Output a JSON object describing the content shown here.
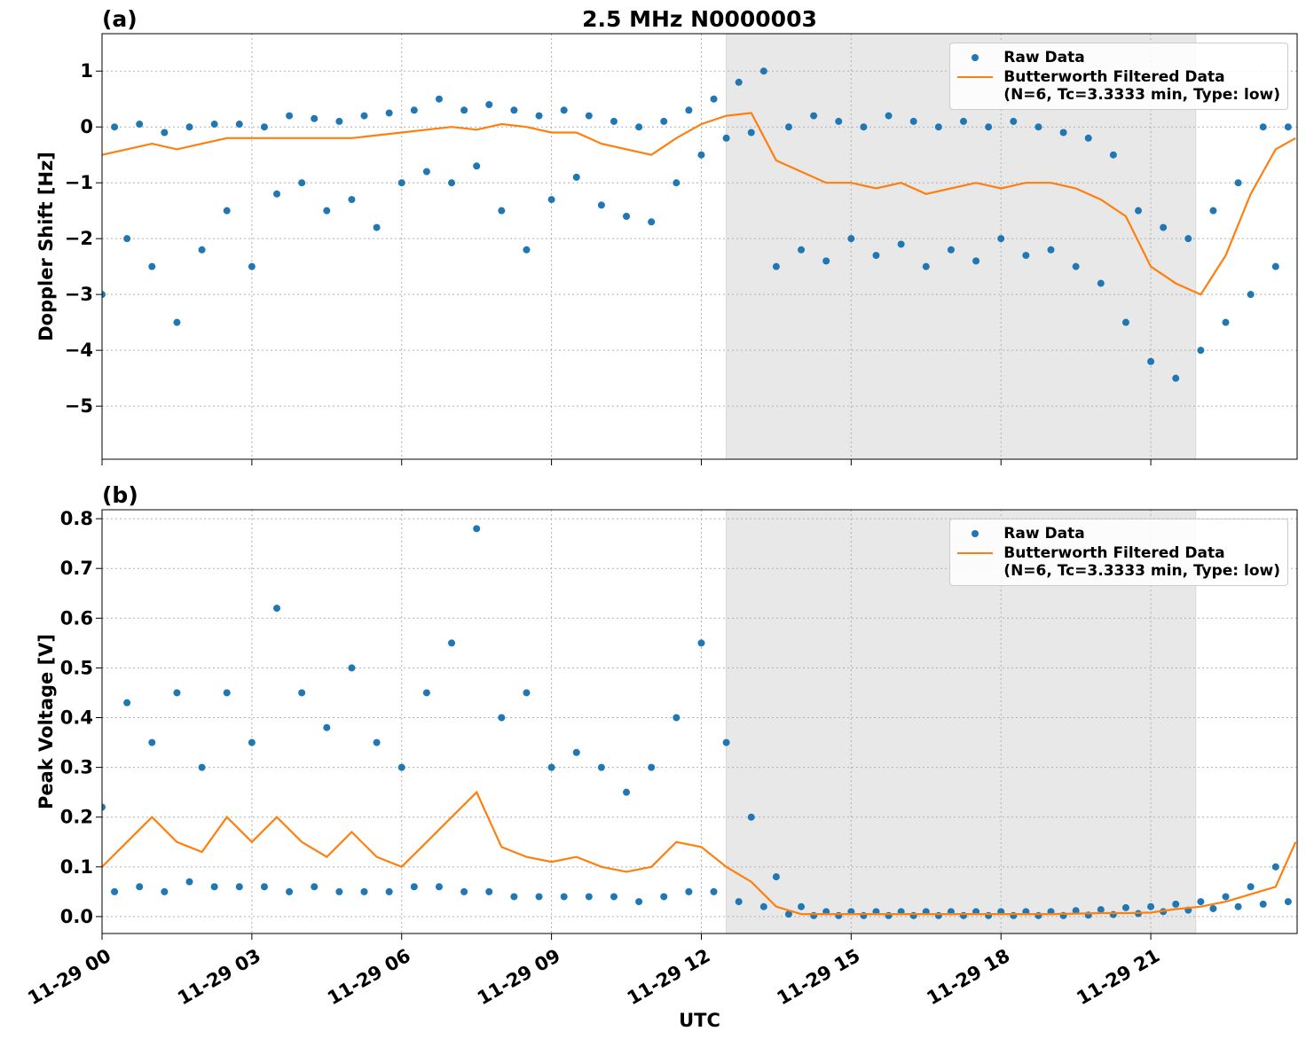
{
  "chart_data": [
    {
      "type": "scatter",
      "title": "2.5 MHz N0000003",
      "panel_label": "(a)",
      "y_label": "Doppler Shift [Hz]",
      "xlim": [
        0,
        23.93
      ],
      "xticks": [
        0,
        3,
        6,
        9,
        12,
        15,
        18,
        21
      ],
      "ylim": [
        -5.95,
        1.67
      ],
      "yticks": [
        {
          "value": -5,
          "label": "−5"
        },
        {
          "value": -4,
          "label": "−4"
        },
        {
          "value": -3,
          "label": "−3"
        },
        {
          "value": -2,
          "label": "−2"
        },
        {
          "value": -1,
          "label": "−1"
        },
        0,
        1
      ],
      "grid": true,
      "shaded_span": [
        12.5,
        21.9
      ],
      "legend": "upper right",
      "series": [
        {
          "name": "Raw Data",
          "style": "points",
          "color": "#1f77b4",
          "x": [
            0,
            0.25,
            0.5,
            0.75,
            1,
            1.25,
            1.5,
            1.75,
            2,
            2.25,
            2.5,
            2.75,
            3,
            3.25,
            3.5,
            3.75,
            4,
            4.25,
            4.5,
            4.75,
            5,
            5.25,
            5.5,
            5.75,
            6,
            6.25,
            6.5,
            6.75,
            7,
            7.25,
            7.5,
            7.75,
            8,
            8.25,
            8.5,
            8.75,
            9,
            9.25,
            9.5,
            9.75,
            10,
            10.25,
            10.5,
            10.75,
            11,
            11.25,
            11.5,
            11.75,
            12,
            12.25,
            12.5,
            12.75,
            13,
            13.25,
            13.5,
            13.75,
            14,
            14.25,
            14.5,
            14.75,
            15,
            15.25,
            15.5,
            15.75,
            16,
            16.25,
            16.5,
            16.75,
            17,
            17.25,
            17.5,
            17.75,
            18,
            18.25,
            18.5,
            18.75,
            19,
            19.25,
            19.5,
            19.75,
            20,
            20.25,
            20.5,
            20.75,
            21,
            21.25,
            21.5,
            21.75,
            22,
            22.25,
            22.5,
            22.75,
            23,
            23.25,
            23.5,
            23.75
          ],
          "values": [
            -3.0,
            0.0,
            -2.0,
            0.05,
            -2.5,
            -0.1,
            -3.5,
            0.0,
            -2.2,
            0.05,
            -1.5,
            0.05,
            -2.5,
            0.0,
            -1.2,
            0.2,
            -1.0,
            0.15,
            -1.5,
            0.1,
            -1.3,
            0.2,
            -1.8,
            0.25,
            -1.0,
            0.3,
            -0.8,
            0.5,
            -1.0,
            0.3,
            -0.7,
            0.4,
            -1.5,
            0.3,
            -2.2,
            0.2,
            -1.3,
            0.3,
            -0.9,
            0.2,
            -1.4,
            0.1,
            -1.6,
            0.0,
            -1.7,
            0.1,
            -1.0,
            0.3,
            -0.5,
            0.5,
            -0.2,
            0.8,
            -0.1,
            1.0,
            -2.5,
            0.0,
            -2.2,
            0.2,
            -2.4,
            0.1,
            -2.0,
            0.0,
            -2.3,
            0.2,
            -2.1,
            0.1,
            -2.5,
            0.0,
            -2.2,
            0.1,
            -2.4,
            0.0,
            -2.0,
            0.1,
            -2.3,
            0.0,
            -2.2,
            -0.1,
            -2.5,
            -0.2,
            -2.8,
            -0.5,
            -3.5,
            -1.5,
            -4.2,
            -1.8,
            -4.5,
            -2.0,
            -4.0,
            -1.5,
            -3.5,
            -1.0,
            -3.0,
            0.0,
            -2.5,
            0.0
          ]
        },
        {
          "name": "Butterworth Filtered Data\n(N=6, Tc=3.3333 min, Type: low)",
          "style": "line",
          "color": "#ff7f0e",
          "x": [
            0,
            0.5,
            1,
            1.5,
            2,
            2.5,
            3,
            3.5,
            4,
            4.5,
            5,
            5.5,
            6,
            6.5,
            7,
            7.5,
            8,
            8.5,
            9,
            9.5,
            10,
            10.5,
            11,
            11.5,
            12,
            12.5,
            13,
            13.5,
            14,
            14.5,
            15,
            15.5,
            16,
            16.5,
            17,
            17.5,
            18,
            18.5,
            19,
            19.5,
            20,
            20.5,
            21,
            21.5,
            22,
            22.5,
            23,
            23.5,
            23.9
          ],
          "values": [
            -0.5,
            -0.4,
            -0.3,
            -0.4,
            -0.3,
            -0.2,
            -0.2,
            -0.2,
            -0.2,
            -0.2,
            -0.2,
            -0.15,
            -0.1,
            -0.05,
            0,
            -0.05,
            0.05,
            0,
            -0.1,
            -0.1,
            -0.3,
            -0.4,
            -0.5,
            -0.2,
            0.05,
            0.2,
            0.25,
            -0.6,
            -0.8,
            -1.0,
            -1.0,
            -1.1,
            -1.0,
            -1.2,
            -1.1,
            -1.0,
            -1.1,
            -1.0,
            -1.0,
            -1.1,
            -1.3,
            -1.6,
            -2.5,
            -2.8,
            -3.0,
            -2.3,
            -1.2,
            -0.4,
            -0.2
          ]
        }
      ]
    },
    {
      "type": "scatter",
      "panel_label": "(b)",
      "y_label": "Peak Voltage [V]",
      "x_label": "UTC",
      "xlim": [
        0,
        23.93
      ],
      "xticks": [
        {
          "value": 0,
          "label": "11-29 00"
        },
        {
          "value": 3,
          "label": "11-29 03"
        },
        {
          "value": 6,
          "label": "11-29 06"
        },
        {
          "value": 9,
          "label": "11-29 09"
        },
        {
          "value": 12,
          "label": "11-29 12"
        },
        {
          "value": 15,
          "label": "11-29 15"
        },
        {
          "value": 18,
          "label": "11-29 18"
        },
        {
          "value": 21,
          "label": "11-29 21"
        }
      ],
      "ylim": [
        -0.034,
        0.818
      ],
      "yticks": [
        {
          "value": 0,
          "label": "0.0"
        },
        0.1,
        0.2,
        0.3,
        0.4,
        0.5,
        0.6,
        0.7,
        0.8
      ],
      "grid": true,
      "shaded_span": [
        12.5,
        21.9
      ],
      "legend": "upper right",
      "series": [
        {
          "name": "Raw Data",
          "style": "points",
          "color": "#1f77b4",
          "x": [
            0,
            0.25,
            0.5,
            0.75,
            1,
            1.25,
            1.5,
            1.75,
            2,
            2.25,
            2.5,
            2.75,
            3,
            3.25,
            3.5,
            3.75,
            4,
            4.25,
            4.5,
            4.75,
            5,
            5.25,
            5.5,
            5.75,
            6,
            6.25,
            6.5,
            6.75,
            7,
            7.25,
            7.5,
            7.75,
            8,
            8.25,
            8.5,
            8.75,
            9,
            9.25,
            9.5,
            9.75,
            10,
            10.25,
            10.5,
            10.75,
            11,
            11.25,
            11.5,
            11.75,
            12,
            12.25,
            12.5,
            12.75,
            13,
            13.25,
            13.5,
            13.75,
            14,
            14.25,
            14.5,
            14.75,
            15,
            15.25,
            15.5,
            15.75,
            16,
            16.25,
            16.5,
            16.75,
            17,
            17.25,
            17.5,
            17.75,
            18,
            18.25,
            18.5,
            18.75,
            19,
            19.25,
            19.5,
            19.75,
            20,
            20.25,
            20.5,
            20.75,
            21,
            21.25,
            21.5,
            21.75,
            22,
            22.25,
            22.5,
            22.75,
            23,
            23.25,
            23.5,
            23.75
          ],
          "values": [
            0.22,
            0.05,
            0.43,
            0.06,
            0.35,
            0.05,
            0.45,
            0.07,
            0.3,
            0.06,
            0.45,
            0.06,
            0.35,
            0.06,
            0.62,
            0.05,
            0.45,
            0.06,
            0.38,
            0.05,
            0.5,
            0.05,
            0.35,
            0.05,
            0.3,
            0.06,
            0.45,
            0.06,
            0.55,
            0.05,
            0.78,
            0.05,
            0.4,
            0.04,
            0.45,
            0.04,
            0.3,
            0.04,
            0.33,
            0.04,
            0.3,
            0.04,
            0.25,
            0.03,
            0.3,
            0.04,
            0.4,
            0.05,
            0.55,
            0.05,
            0.35,
            0.03,
            0.2,
            0.02,
            0.08,
            0.005,
            0.02,
            0.002,
            0.01,
            0.002,
            0.01,
            0.002,
            0.01,
            0.002,
            0.01,
            0.002,
            0.01,
            0.002,
            0.01,
            0.002,
            0.01,
            0.002,
            0.01,
            0.002,
            0.01,
            0.002,
            0.01,
            0.002,
            0.012,
            0.003,
            0.014,
            0.004,
            0.018,
            0.006,
            0.02,
            0.01,
            0.025,
            0.013,
            0.03,
            0.016,
            0.04,
            0.02,
            0.06,
            0.025,
            0.1,
            0.03
          ]
        },
        {
          "name": "Butterworth Filtered Data\n(N=6, Tc=3.3333 min, Type: low)",
          "style": "line",
          "color": "#ff7f0e",
          "x": [
            0,
            0.5,
            1,
            1.5,
            2,
            2.5,
            3,
            3.5,
            4,
            4.5,
            5,
            5.5,
            6,
            6.5,
            7,
            7.5,
            8,
            8.5,
            9,
            9.5,
            10,
            10.5,
            11,
            11.5,
            12,
            12.5,
            13,
            13.5,
            14,
            14.5,
            15,
            15.5,
            16,
            16.5,
            17,
            17.5,
            18,
            18.5,
            19,
            19.5,
            20,
            20.5,
            21,
            21.5,
            22,
            22.5,
            23,
            23.5,
            23.9
          ],
          "values": [
            0.1,
            0.15,
            0.2,
            0.15,
            0.13,
            0.2,
            0.15,
            0.2,
            0.15,
            0.12,
            0.17,
            0.12,
            0.1,
            0.15,
            0.2,
            0.25,
            0.14,
            0.12,
            0.11,
            0.12,
            0.1,
            0.09,
            0.1,
            0.15,
            0.14,
            0.1,
            0.07,
            0.02,
            0.005,
            0.005,
            0.005,
            0.005,
            0.005,
            0.005,
            0.005,
            0.005,
            0.005,
            0.005,
            0.005,
            0.006,
            0.007,
            0.007,
            0.008,
            0.015,
            0.02,
            0.03,
            0.045,
            0.06,
            0.15
          ]
        }
      ]
    }
  ]
}
